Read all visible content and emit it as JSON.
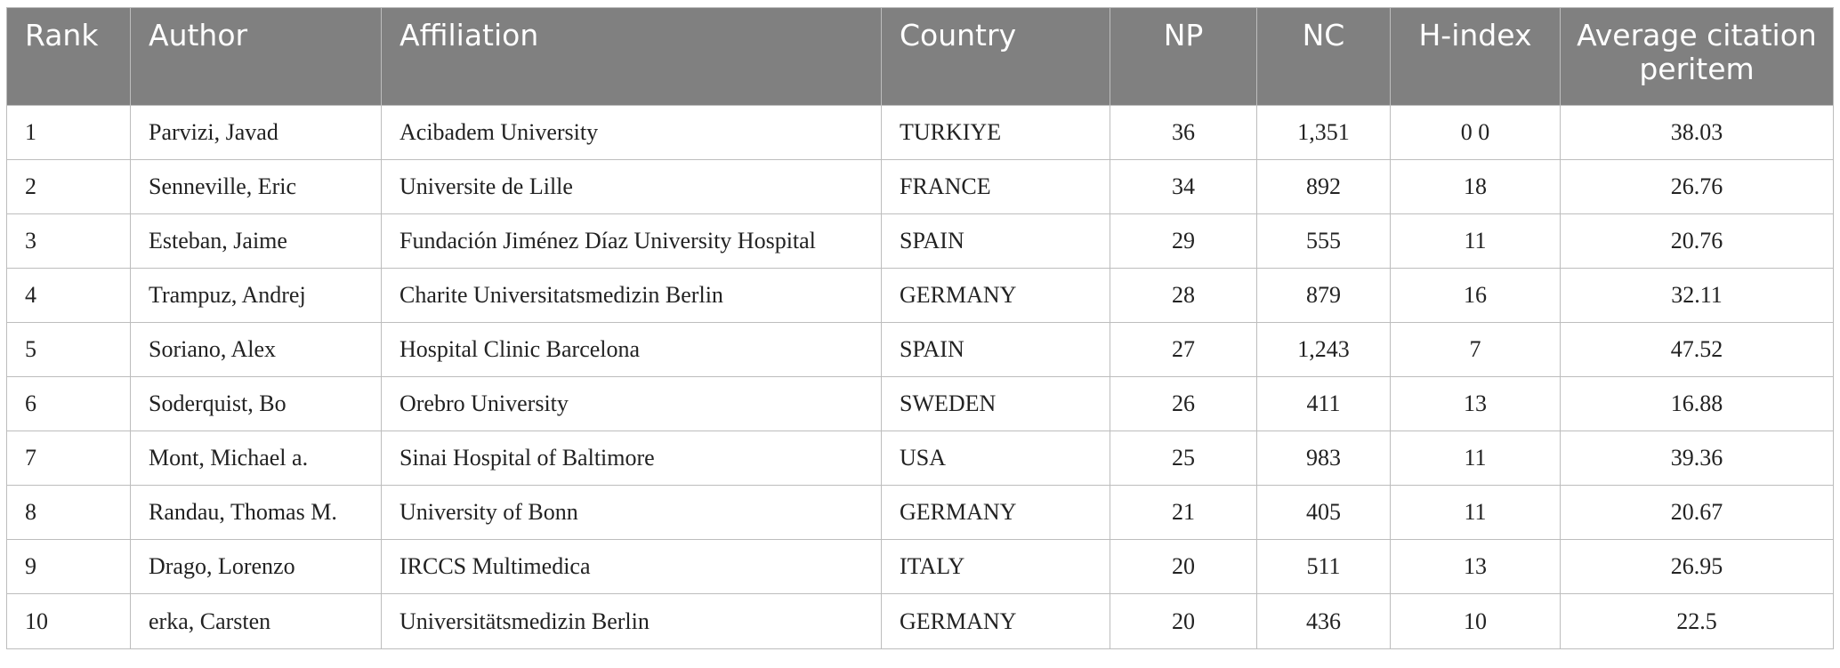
{
  "table": {
    "headers": [
      "Rank",
      "Author",
      "Affiliation",
      "Country",
      "NP",
      "NC",
      "H-index",
      "Average citation peritem"
    ],
    "rows": [
      [
        "1",
        "Parvizi, Javad",
        "Acibadem University",
        "TURKIYE",
        "36",
        "1,351",
        "0 0",
        "38.03"
      ],
      [
        "2",
        "Senneville, Eric",
        "Universite de Lille",
        "FRANCE",
        "34",
        "892",
        "18",
        "26.76"
      ],
      [
        "3",
        "Esteban, Jaime",
        "Fundación Jiménez Díaz University Hospital",
        "SPAIN",
        "29",
        "555",
        "11",
        "20.76"
      ],
      [
        "4",
        "Trampuz, Andrej",
        "Charite Universitatsmedizin Berlin",
        "GERMANY",
        "28",
        "879",
        "16",
        "32.11"
      ],
      [
        "5",
        "Soriano, Alex",
        "Hospital Clinic Barcelona",
        "SPAIN",
        "27",
        "1,243",
        "7",
        "47.52"
      ],
      [
        "6",
        "Soderquist, Bo",
        "Orebro University",
        "SWEDEN",
        "26",
        "411",
        "13",
        "16.88"
      ],
      [
        "7",
        "Mont, Michael a.",
        "Sinai Hospital of Baltimore",
        "USA",
        "25",
        "983",
        "11",
        "39.36"
      ],
      [
        "8",
        "Randau, Thomas M.",
        "University of Bonn",
        "GERMANY",
        "21",
        "405",
        "11",
        "20.67"
      ],
      [
        "9",
        "Drago, Lorenzo",
        "IRCCS Multimedica",
        "ITALY",
        "20",
        "511",
        "13",
        "26.95"
      ],
      [
        "10",
        "erka, Carsten",
        "Universitätsmedizin Berlin",
        "GERMANY",
        "20",
        "436",
        "10",
        "22.5"
      ]
    ]
  },
  "colors": {
    "header_background": "#808080",
    "header_text": "#ffffff",
    "grid_lines": "#bdbdbd",
    "body_text": "#222222"
  }
}
